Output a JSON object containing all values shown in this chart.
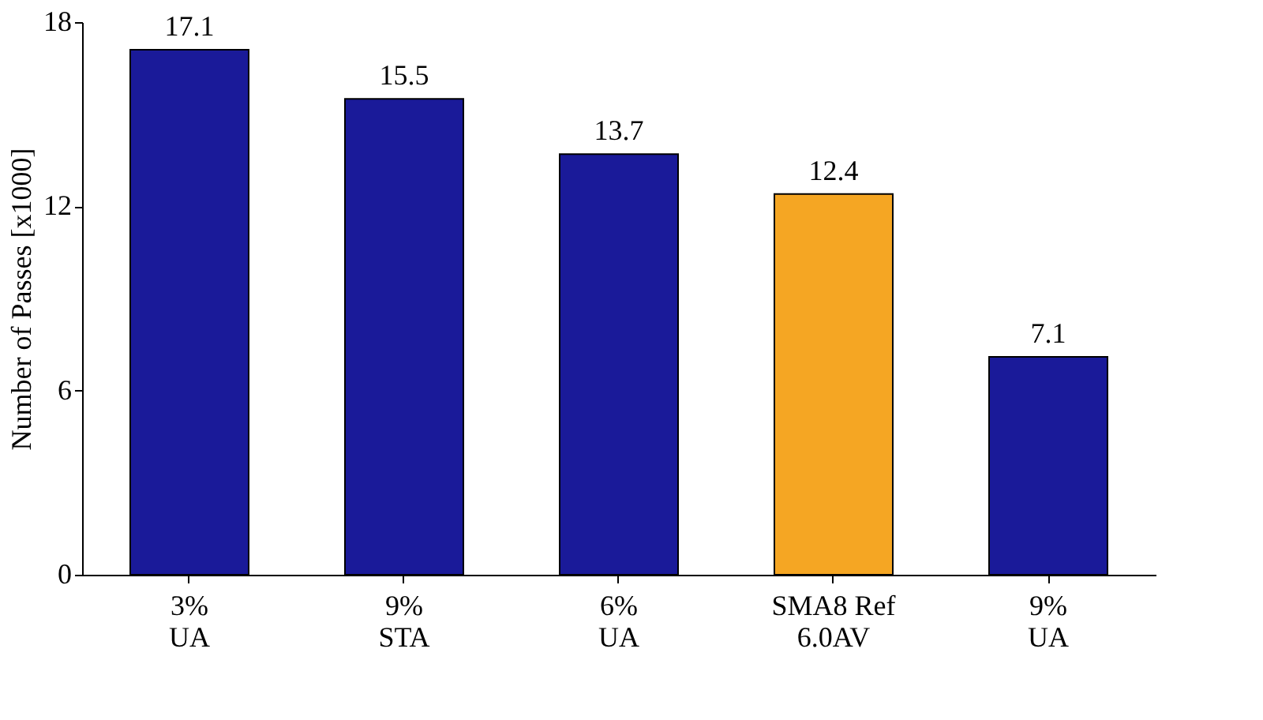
{
  "chart_data": {
    "type": "bar",
    "ylabel": "Number of Passes [x1000]",
    "categories": [
      "3%\nUA",
      "9%\nSTA",
      "6%\nUA",
      "SMA8 Ref\n6.0AV",
      "9%\nUA"
    ],
    "values": [
      17.1,
      15.5,
      13.7,
      12.4,
      7.1
    ],
    "colors": [
      "#1a1a99",
      "#1a1a99",
      "#1a1a99",
      "#f5a623",
      "#1a1a99"
    ],
    "ylim": [
      0,
      18
    ],
    "yticks": [
      0,
      6,
      12,
      18
    ],
    "grid": false,
    "data_labels": true
  }
}
